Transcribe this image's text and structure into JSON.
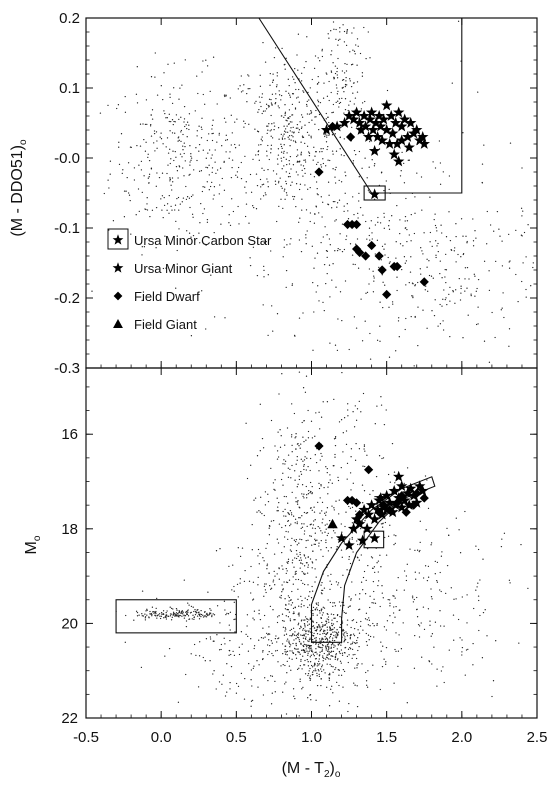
{
  "chart_data": [
    {
      "type": "scatter",
      "panel": "top",
      "ylabel_main": "(M - DDO51)",
      "ylabel_sub": "o",
      "xlim": [
        -0.5,
        2.5
      ],
      "ylim": [
        -0.3,
        0.2
      ],
      "yticks": [
        {
          "value": 0.2,
          "label": "0.2"
        },
        {
          "value": 0.1,
          "label": "0.1"
        },
        {
          "value": 0.0,
          "label": "-0.0"
        },
        {
          "value": -0.1,
          "label": "-0.1"
        },
        {
          "value": -0.2,
          "label": "-0.2"
        },
        {
          "value": -0.3,
          "label": "-0.3"
        }
      ],
      "legend": {
        "placement": "left-middle",
        "items": [
          {
            "label": "Ursa Minor Carbon Star",
            "marker": "boxed-star"
          },
          {
            "label": "Ursa Minor Giant",
            "marker": "star"
          },
          {
            "label": "Field Dwarf",
            "marker": "diamond"
          },
          {
            "label": "Field Giant",
            "marker": "triangle"
          }
        ]
      },
      "selection_polygon": [
        [
          0.65,
          0.2
        ],
        [
          1.4,
          -0.05
        ],
        [
          2.0,
          -0.05
        ],
        [
          2.0,
          0.2
        ]
      ],
      "carbon_box": {
        "x": [
          1.35,
          1.49
        ],
        "y": [
          -0.06,
          -0.04
        ]
      },
      "series": [
        {
          "name": "Ursa Minor Carbon Star",
          "marker": "boxed-star",
          "points": [
            [
              1.42,
              -0.052
            ]
          ]
        },
        {
          "name": "Ursa Minor Giant",
          "marker": "star",
          "points": [
            [
              1.1,
              0.04
            ],
            [
              1.17,
              0.045
            ],
            [
              1.22,
              0.05
            ],
            [
              1.25,
              0.06
            ],
            [
              1.28,
              0.055
            ],
            [
              1.3,
              0.065
            ],
            [
              1.32,
              0.05
            ],
            [
              1.33,
              0.04
            ],
            [
              1.35,
              0.06
            ],
            [
              1.36,
              0.045
            ],
            [
              1.38,
              0.03
            ],
            [
              1.39,
              0.055
            ],
            [
              1.4,
              0.065
            ],
            [
              1.41,
              0.04
            ],
            [
              1.43,
              0.05
            ],
            [
              1.44,
              0.03
            ],
            [
              1.45,
              0.06
            ],
            [
              1.46,
              0.045
            ],
            [
              1.47,
              0.025
            ],
            [
              1.48,
              0.055
            ],
            [
              1.5,
              0.075
            ],
            [
              1.5,
              0.04
            ],
            [
              1.52,
              0.02
            ],
            [
              1.53,
              0.06
            ],
            [
              1.54,
              0.035
            ],
            [
              1.56,
              0.05
            ],
            [
              1.57,
              0.02
            ],
            [
              1.58,
              0.065
            ],
            [
              1.6,
              0.045
            ],
            [
              1.6,
              0.025
            ],
            [
              1.62,
              0.055
            ],
            [
              1.64,
              0.03
            ],
            [
              1.65,
              0.015
            ],
            [
              1.66,
              0.05
            ],
            [
              1.68,
              0.035
            ],
            [
              1.7,
              0.04
            ],
            [
              1.72,
              0.025
            ],
            [
              1.74,
              0.03
            ],
            [
              1.75,
              0.02
            ],
            [
              1.55,
              0.005
            ],
            [
              1.42,
              0.01
            ],
            [
              1.58,
              -0.005
            ]
          ]
        },
        {
          "name": "Field Dwarf",
          "marker": "diamond",
          "points": [
            [
              1.05,
              -0.02
            ],
            [
              1.24,
              -0.095
            ],
            [
              1.27,
              -0.095
            ],
            [
              1.3,
              -0.095
            ],
            [
              1.3,
              -0.13
            ],
            [
              1.32,
              -0.135
            ],
            [
              1.36,
              -0.14
            ],
            [
              1.4,
              -0.125
            ],
            [
              1.45,
              -0.14
            ],
            [
              1.47,
              -0.16
            ],
            [
              1.55,
              -0.155
            ],
            [
              1.57,
              -0.155
            ],
            [
              1.5,
              -0.195
            ],
            [
              1.75,
              -0.177
            ],
            [
              1.14,
              0.045
            ],
            [
              1.26,
              0.03
            ]
          ]
        },
        {
          "name": "Field Giant",
          "marker": "triangle",
          "points": []
        }
      ]
    },
    {
      "type": "scatter",
      "panel": "bottom",
      "xlabel_main": "(M - T",
      "xlabel_sub": "2",
      "xlabel_close": ")",
      "xlabel_sub2": "o",
      "ylabel_main": "M",
      "ylabel_sub": "o",
      "xlim": [
        -0.5,
        2.5
      ],
      "ylim": [
        22,
        14.6
      ],
      "xticks": [
        {
          "value": -0.5,
          "label": "-0.5"
        },
        {
          "value": 0.0,
          "label": "0.0"
        },
        {
          "value": 0.5,
          "label": "0.5"
        },
        {
          "value": 1.0,
          "label": "1.0"
        },
        {
          "value": 1.5,
          "label": "1.5"
        },
        {
          "value": 2.0,
          "label": "2.0"
        },
        {
          "value": 2.5,
          "label": "2.5"
        }
      ],
      "yticks": [
        {
          "value": 16,
          "label": "16"
        },
        {
          "value": 18,
          "label": "18"
        },
        {
          "value": 20,
          "label": "20"
        },
        {
          "value": 22,
          "label": "22"
        }
      ],
      "hb_box": {
        "x": [
          -0.3,
          0.5
        ],
        "y": [
          19.5,
          20.2
        ]
      },
      "carbon_box": {
        "x": [
          1.35,
          1.48
        ],
        "y": [
          18.05,
          18.4
        ]
      },
      "series": [
        {
          "name": "Ursa Minor Carbon Star",
          "marker": "boxed-star",
          "points": [
            [
              1.42,
              18.2
            ]
          ]
        },
        {
          "name": "Ursa Minor Giant",
          "marker": "star",
          "points": [
            [
              1.2,
              18.2
            ],
            [
              1.25,
              18.35
            ],
            [
              1.28,
              18.0
            ],
            [
              1.3,
              17.8
            ],
            [
              1.32,
              17.9
            ],
            [
              1.35,
              17.6
            ],
            [
              1.37,
              18.0
            ],
            [
              1.38,
              17.7
            ],
            [
              1.4,
              17.5
            ],
            [
              1.42,
              17.8
            ],
            [
              1.44,
              17.6
            ],
            [
              1.45,
              17.4
            ],
            [
              1.47,
              17.7
            ],
            [
              1.48,
              17.55
            ],
            [
              1.5,
              17.3
            ],
            [
              1.5,
              17.6
            ],
            [
              1.52,
              17.45
            ],
            [
              1.54,
              17.65
            ],
            [
              1.55,
              17.2
            ],
            [
              1.56,
              17.5
            ],
            [
              1.58,
              17.35
            ],
            [
              1.6,
              17.1
            ],
            [
              1.6,
              17.55
            ],
            [
              1.62,
              17.4
            ],
            [
              1.64,
              17.25
            ],
            [
              1.65,
              17.5
            ],
            [
              1.66,
              17.15
            ],
            [
              1.68,
              17.3
            ],
            [
              1.7,
              17.45
            ],
            [
              1.72,
              17.1
            ],
            [
              1.74,
              17.2
            ],
            [
              1.34,
              18.25
            ],
            [
              1.46,
              17.35
            ],
            [
              1.58,
              16.9
            ]
          ]
        },
        {
          "name": "Field Dwarf",
          "marker": "diamond",
          "points": [
            [
              1.05,
              16.25
            ],
            [
              1.24,
              17.4
            ],
            [
              1.27,
              17.4
            ],
            [
              1.3,
              17.45
            ],
            [
              1.32,
              17.7
            ],
            [
              1.45,
              17.65
            ],
            [
              1.48,
              17.5
            ],
            [
              1.52,
              17.6
            ],
            [
              1.57,
              17.45
            ],
            [
              1.6,
              17.3
            ],
            [
              1.63,
              17.65
            ],
            [
              1.68,
              17.5
            ],
            [
              1.7,
              17.25
            ],
            [
              1.75,
              17.35
            ],
            [
              1.38,
              16.75
            ]
          ]
        },
        {
          "name": "Field Giant",
          "marker": "triangle",
          "points": [
            [
              1.14,
              17.9
            ]
          ]
        }
      ]
    }
  ]
}
